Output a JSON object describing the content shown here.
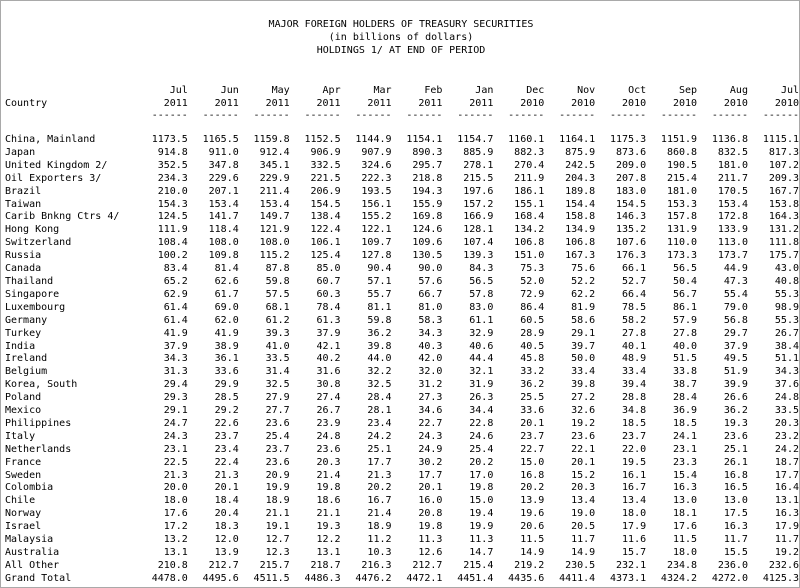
{
  "titles": {
    "line1": "MAJOR FOREIGN HOLDERS OF TREASURY SECURITIES",
    "line2": "(in billions of dollars)",
    "line3": "HOLDINGS 1/ AT END OF PERIOD"
  },
  "header": {
    "country": "Country",
    "months": [
      "Jul",
      "Jun",
      "May",
      "Apr",
      "Mar",
      "Feb",
      "Jan",
      "Dec",
      "Nov",
      "Oct",
      "Sep",
      "Aug",
      "Jul"
    ],
    "years": [
      "2011",
      "2011",
      "2011",
      "2011",
      "2011",
      "2011",
      "2011",
      "2010",
      "2010",
      "2010",
      "2010",
      "2010",
      "2010"
    ],
    "dashes": "------"
  },
  "rows": [
    {
      "name": "China, Mainland",
      "values": [
        "1173.5",
        "1165.5",
        "1159.8",
        "1152.5",
        "1144.9",
        "1154.1",
        "1154.7",
        "1160.1",
        "1164.1",
        "1175.3",
        "1151.9",
        "1136.8",
        "1115.1"
      ]
    },
    {
      "name": "Japan",
      "values": [
        "914.8",
        "911.0",
        "912.4",
        "906.9",
        "907.9",
        "890.3",
        "885.9",
        "882.3",
        "875.9",
        "873.6",
        "860.8",
        "832.5",
        "817.3"
      ]
    },
    {
      "name": "United Kingdom 2/",
      "values": [
        "352.5",
        "347.8",
        "345.1",
        "332.5",
        "324.6",
        "295.7",
        "278.1",
        "270.4",
        "242.5",
        "209.0",
        "190.5",
        "181.0",
        "107.2"
      ]
    },
    {
      "name": "Oil Exporters 3/",
      "values": [
        "234.3",
        "229.6",
        "229.9",
        "221.5",
        "222.3",
        "218.8",
        "215.5",
        "211.9",
        "204.3",
        "207.8",
        "215.4",
        "211.7",
        "209.3"
      ]
    },
    {
      "name": "Brazil",
      "values": [
        "210.0",
        "207.1",
        "211.4",
        "206.9",
        "193.5",
        "194.3",
        "197.6",
        "186.1",
        "189.8",
        "183.0",
        "181.0",
        "170.5",
        "167.7"
      ]
    },
    {
      "name": "Taiwan",
      "values": [
        "154.3",
        "153.4",
        "153.4",
        "154.5",
        "156.1",
        "155.9",
        "157.2",
        "155.1",
        "154.4",
        "154.5",
        "153.3",
        "153.4",
        "153.8"
      ]
    },
    {
      "name": "Carib Bnkng Ctrs 4/",
      "values": [
        "124.5",
        "141.7",
        "149.7",
        "138.4",
        "155.2",
        "169.8",
        "166.9",
        "168.4",
        "158.8",
        "146.3",
        "157.8",
        "172.8",
        "164.3"
      ]
    },
    {
      "name": "Hong Kong",
      "values": [
        "111.9",
        "118.4",
        "121.9",
        "122.4",
        "122.1",
        "124.6",
        "128.1",
        "134.2",
        "134.9",
        "135.2",
        "131.9",
        "133.9",
        "131.2"
      ]
    },
    {
      "name": "Switzerland",
      "values": [
        "108.4",
        "108.0",
        "108.0",
        "106.1",
        "109.7",
        "109.6",
        "107.4",
        "106.8",
        "106.8",
        "107.6",
        "110.0",
        "113.0",
        "111.8"
      ]
    },
    {
      "name": "Russia",
      "values": [
        "100.2",
        "109.8",
        "115.2",
        "125.4",
        "127.8",
        "130.5",
        "139.3",
        "151.0",
        "167.3",
        "176.3",
        "173.3",
        "173.7",
        "175.7"
      ]
    },
    {
      "name": "Canada",
      "values": [
        "83.4",
        "81.4",
        "87.8",
        "85.0",
        "90.4",
        "90.0",
        "84.3",
        "75.3",
        "75.6",
        "66.1",
        "56.5",
        "44.9",
        "43.0"
      ]
    },
    {
      "name": "Thailand",
      "values": [
        "65.2",
        "62.6",
        "59.8",
        "60.7",
        "57.1",
        "57.6",
        "56.5",
        "52.0",
        "52.2",
        "52.7",
        "50.4",
        "47.3",
        "40.8"
      ]
    },
    {
      "name": "Singapore",
      "values": [
        "62.9",
        "61.7",
        "57.5",
        "60.3",
        "55.7",
        "66.7",
        "57.8",
        "72.9",
        "62.2",
        "66.4",
        "56.7",
        "55.4",
        "55.3"
      ]
    },
    {
      "name": "Luxembourg",
      "values": [
        "61.4",
        "69.0",
        "68.1",
        "78.4",
        "81.1",
        "81.0",
        "83.0",
        "86.4",
        "81.9",
        "78.5",
        "86.1",
        "79.0",
        "98.9"
      ]
    },
    {
      "name": "Germany",
      "values": [
        "61.4",
        "62.0",
        "61.2",
        "61.3",
        "59.8",
        "58.3",
        "61.1",
        "60.5",
        "58.6",
        "58.2",
        "57.9",
        "56.8",
        "55.3"
      ]
    },
    {
      "name": "Turkey",
      "values": [
        "41.9",
        "41.9",
        "39.3",
        "37.9",
        "36.2",
        "34.3",
        "32.9",
        "28.9",
        "29.1",
        "27.8",
        "27.8",
        "29.7",
        "26.7"
      ]
    },
    {
      "name": "India",
      "values": [
        "37.9",
        "38.9",
        "41.0",
        "42.1",
        "39.8",
        "40.3",
        "40.6",
        "40.5",
        "39.7",
        "40.1",
        "40.0",
        "37.9",
        "38.4"
      ]
    },
    {
      "name": "Ireland",
      "values": [
        "34.3",
        "36.1",
        "33.5",
        "40.2",
        "44.0",
        "42.0",
        "44.4",
        "45.8",
        "50.0",
        "48.9",
        "51.5",
        "49.5",
        "51.1"
      ]
    },
    {
      "name": "Belgium",
      "values": [
        "31.3",
        "33.6",
        "31.4",
        "31.6",
        "32.2",
        "32.0",
        "32.1",
        "33.2",
        "33.4",
        "33.4",
        "33.8",
        "51.9",
        "34.3"
      ]
    },
    {
      "name": "Korea, South",
      "values": [
        "29.4",
        "29.9",
        "32.5",
        "30.8",
        "32.5",
        "31.2",
        "31.9",
        "36.2",
        "39.8",
        "39.4",
        "38.7",
        "39.9",
        "37.6"
      ]
    },
    {
      "name": "Poland",
      "values": [
        "29.3",
        "28.5",
        "27.9",
        "27.4",
        "28.4",
        "27.3",
        "26.3",
        "25.5",
        "27.2",
        "28.8",
        "28.4",
        "26.6",
        "24.8"
      ]
    },
    {
      "name": "Mexico",
      "values": [
        "29.1",
        "29.2",
        "27.7",
        "26.7",
        "28.1",
        "34.6",
        "34.4",
        "33.6",
        "32.6",
        "34.8",
        "36.9",
        "36.2",
        "33.5"
      ]
    },
    {
      "name": "Philippines",
      "values": [
        "24.7",
        "22.6",
        "23.6",
        "23.9",
        "23.4",
        "22.7",
        "22.8",
        "20.1",
        "19.2",
        "18.5",
        "18.5",
        "19.3",
        "20.3"
      ]
    },
    {
      "name": "Italy",
      "values": [
        "24.3",
        "23.7",
        "25.4",
        "24.8",
        "24.2",
        "24.3",
        "24.6",
        "23.7",
        "23.6",
        "23.7",
        "24.1",
        "23.6",
        "23.2"
      ]
    },
    {
      "name": "Netherlands",
      "values": [
        "23.1",
        "23.4",
        "23.7",
        "23.6",
        "25.1",
        "24.9",
        "25.4",
        "22.7",
        "22.1",
        "22.0",
        "23.1",
        "25.1",
        "24.2"
      ]
    },
    {
      "name": "France",
      "values": [
        "22.5",
        "22.4",
        "23.6",
        "20.3",
        "17.7",
        "30.2",
        "20.2",
        "15.0",
        "20.1",
        "19.5",
        "23.3",
        "26.1",
        "18.7"
      ]
    },
    {
      "name": "Sweden",
      "values": [
        "21.3",
        "21.3",
        "20.9",
        "21.4",
        "21.3",
        "17.7",
        "17.0",
        "16.8",
        "15.2",
        "16.1",
        "15.4",
        "16.8",
        "17.7"
      ]
    },
    {
      "name": "Colombia",
      "values": [
        "20.0",
        "20.1",
        "19.9",
        "19.8",
        "20.2",
        "20.1",
        "19.8",
        "20.2",
        "20.3",
        "16.7",
        "16.3",
        "16.5",
        "16.4"
      ]
    },
    {
      "name": "Chile",
      "values": [
        "18.0",
        "18.4",
        "18.9",
        "18.6",
        "16.7",
        "16.0",
        "15.0",
        "13.9",
        "13.4",
        "13.4",
        "13.0",
        "13.0",
        "13.1"
      ]
    },
    {
      "name": "Norway",
      "values": [
        "17.6",
        "20.4",
        "21.1",
        "21.1",
        "21.4",
        "20.8",
        "19.4",
        "19.6",
        "19.0",
        "18.0",
        "18.1",
        "17.5",
        "16.3"
      ]
    },
    {
      "name": "Israel",
      "values": [
        "17.2",
        "18.3",
        "19.1",
        "19.3",
        "18.9",
        "19.8",
        "19.9",
        "20.6",
        "20.5",
        "17.9",
        "17.6",
        "16.3",
        "17.9"
      ]
    },
    {
      "name": "Malaysia",
      "values": [
        "13.2",
        "12.0",
        "12.7",
        "12.2",
        "11.2",
        "11.3",
        "11.3",
        "11.5",
        "11.7",
        "11.6",
        "11.5",
        "11.7",
        "11.7"
      ]
    },
    {
      "name": "Australia",
      "values": [
        "13.1",
        "13.9",
        "12.3",
        "13.1",
        "10.3",
        "12.6",
        "14.7",
        "14.9",
        "14.9",
        "15.7",
        "18.0",
        "15.5",
        "19.2"
      ]
    },
    {
      "name": "All Other",
      "values": [
        "210.8",
        "212.7",
        "215.7",
        "218.7",
        "216.3",
        "212.7",
        "215.4",
        "219.2",
        "230.5",
        "232.1",
        "234.8",
        "236.0",
        "232.6"
      ]
    },
    {
      "name": "Grand Total",
      "values": [
        "4478.0",
        "4495.6",
        "4511.5",
        "4486.3",
        "4476.2",
        "4472.1",
        "4451.4",
        "4435.6",
        "4411.4",
        "4373.1",
        "4324.2",
        "4272.0",
        "4125.3"
      ]
    }
  ]
}
